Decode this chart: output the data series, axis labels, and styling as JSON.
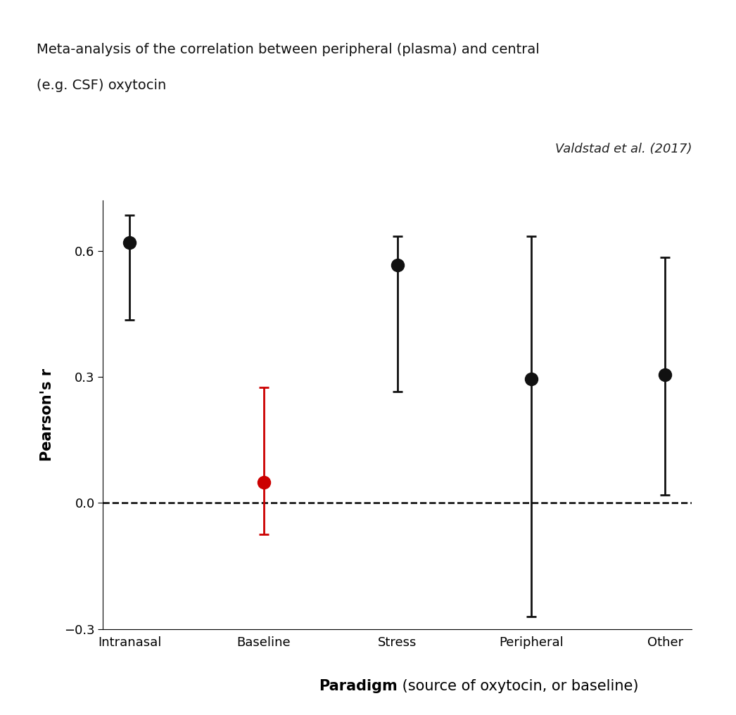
{
  "title_line1": "Meta-analysis of the correlation between peripheral (plasma) and central",
  "title_line2": "(e.g. CSF) oxytocin",
  "citation": "Valdstad et al. (2017)",
  "xlabel_bold": "Paradigm",
  "xlabel_normal": " (source of oxytocin, or baseline)",
  "ylabel": "Pearson's r",
  "categories": [
    "Intranasal",
    "Baseline",
    "Stress",
    "Peripheral",
    "Other"
  ],
  "values": [
    0.62,
    0.05,
    0.565,
    0.295,
    0.305
  ],
  "ci_upper": [
    0.685,
    0.275,
    0.635,
    0.635,
    0.585
  ],
  "ci_lower": [
    0.435,
    -0.075,
    0.265,
    -0.27,
    0.02
  ],
  "colors": [
    "#111111",
    "#cc0000",
    "#111111",
    "#111111",
    "#111111"
  ],
  "ylim": [
    -0.3,
    0.72
  ],
  "yticks": [
    -0.3,
    0.0,
    0.3,
    0.6
  ],
  "ytick_labels": [
    "−0.3",
    "0.0",
    "0.3",
    "0.6"
  ],
  "dashed_line_y": 0.0,
  "marker_size": 13,
  "capsize": 5,
  "background_color": "#ffffff",
  "title_fontsize": 14,
  "axis_label_fontsize": 15,
  "tick_fontsize": 13,
  "citation_fontsize": 13
}
